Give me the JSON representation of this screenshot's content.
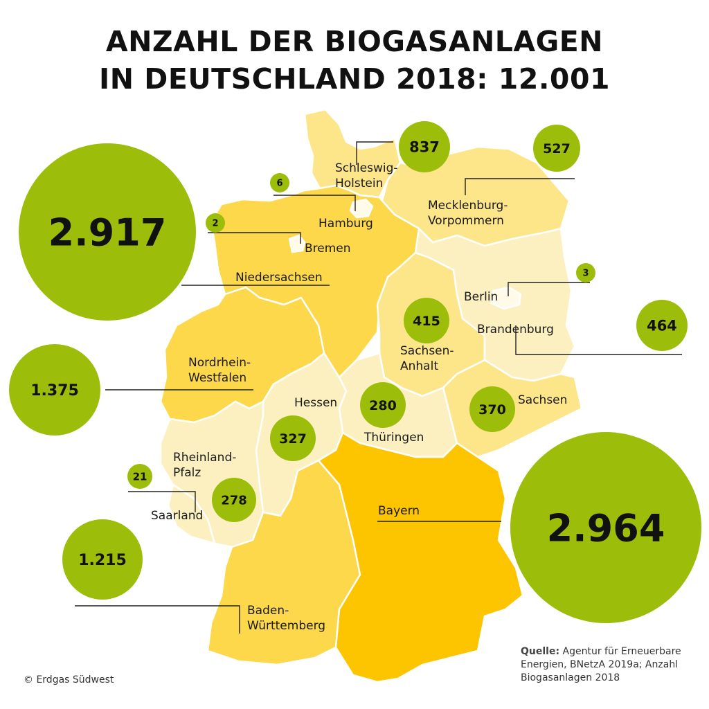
{
  "title": {
    "line1": "ANZAHL DER BIOGASANLAGEN",
    "line2": "IN DEUTSCHLAND 2018: 12.001"
  },
  "colors": {
    "bubble": "#9cbd0a",
    "state_dark": "#fcc500",
    "state_medium": "#fcd84a",
    "state_light": "#fde58a",
    "state_lighter": "#fdf0c0",
    "city": "#fffbe8"
  },
  "states": [
    {
      "id": "baden-wuerttemberg",
      "name_lines": [
        "Baden-",
        "Württemberg"
      ],
      "count": "1.215"
    },
    {
      "id": "bayern",
      "name_lines": [
        "Bayern"
      ],
      "count": "2.964"
    },
    {
      "id": "berlin",
      "name_lines": [
        "Berlin"
      ],
      "count": "3"
    },
    {
      "id": "brandenburg",
      "name_lines": [
        "Brandenburg"
      ],
      "count": "464"
    },
    {
      "id": "bremen",
      "name_lines": [
        "Bremen"
      ],
      "count": "2"
    },
    {
      "id": "hamburg",
      "name_lines": [
        "Hamburg"
      ],
      "count": "6"
    },
    {
      "id": "hessen",
      "name_lines": [
        "Hessen"
      ],
      "count": "327"
    },
    {
      "id": "mecklenburg-vorpommern",
      "name_lines": [
        "Mecklenburg-",
        "Vorpommern"
      ],
      "count": "527"
    },
    {
      "id": "niedersachsen",
      "name_lines": [
        "Niedersachsen"
      ],
      "count": "2.917"
    },
    {
      "id": "nordrhein-westfalen",
      "name_lines": [
        "Nordrhein-",
        "Westfalen"
      ],
      "count": "1.375"
    },
    {
      "id": "rheinland-pfalz",
      "name_lines": [
        "Rheinland-",
        "Pfalz"
      ],
      "count": "278"
    },
    {
      "id": "saarland",
      "name_lines": [
        "Saarland"
      ],
      "count": "21"
    },
    {
      "id": "sachsen",
      "name_lines": [
        "Sachsen"
      ],
      "count": "370"
    },
    {
      "id": "sachsen-anhalt",
      "name_lines": [
        "Sachsen-",
        "Anhalt"
      ],
      "count": "415"
    },
    {
      "id": "schleswig-holstein",
      "name_lines": [
        "Schleswig-",
        "Holstein"
      ],
      "count": "837"
    },
    {
      "id": "thueringen",
      "name_lines": [
        "Thüringen"
      ],
      "count": "280"
    }
  ],
  "source": {
    "label": "Quelle:",
    "text": "Agentur für Erneuerbare Energien, BNetzA 2019a; Anzahl Biogasanlagen 2018"
  },
  "copyright": "© Erdgas Südwest"
}
